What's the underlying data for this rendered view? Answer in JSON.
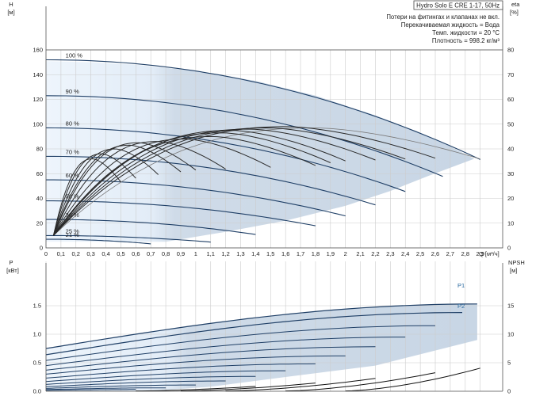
{
  "info": {
    "title": "Hydro Solo E CRE 1-17, 50Hz",
    "lines": [
      "Потери на фитингах и клапанах не вкл.",
      "Перекачиваемая жидкость = Вода",
      "Темп. жидкости = 20 °C",
      "Плотность = 998.2 кг/м³"
    ]
  },
  "colors": {
    "curve": "#1f3f66",
    "eta": "#2a2a2a",
    "eta_light": "#7a7a7a",
    "region": "#cfdbe8",
    "region_light": "#eaf2fb",
    "grid": "#cccccc",
    "label_blue": "#2b6aa0"
  },
  "chart_data": [
    {
      "type": "line",
      "title": "",
      "xlabel": "Q [м³/ч]",
      "ylabel": "H [м]",
      "y2label": "eta [%]",
      "x_ticks": [
        0,
        0.1,
        0.2,
        0.3,
        0.4,
        0.5,
        0.6,
        0.7,
        0.8,
        0.9,
        1.0,
        1.1,
        1.2,
        1.3,
        1.4,
        1.5,
        1.6,
        1.7,
        1.8,
        1.9,
        2.0,
        2.1,
        2.2,
        2.3,
        2.4,
        2.5,
        2.6,
        2.7,
        2.8,
        2.9
      ],
      "xlim": [
        0,
        3.05
      ],
      "ylim": [
        0,
        160
      ],
      "y_ticks": [
        0,
        20,
        40,
        60,
        80,
        100,
        120,
        140,
        160
      ],
      "y2lim": [
        0,
        80
      ],
      "y2_ticks": [
        0,
        10,
        20,
        30,
        40,
        50,
        60,
        70,
        80
      ],
      "grid": true,
      "operating_region": {
        "upper": [
          [
            0,
            151
          ],
          [
            0.3,
            150
          ],
          [
            0.6,
            148
          ],
          [
            1.0,
            143
          ],
          [
            1.4,
            135
          ],
          [
            1.8,
            123
          ],
          [
            2.2,
            107
          ],
          [
            2.5,
            93
          ],
          [
            2.7,
            82
          ],
          [
            2.86,
            72
          ]
        ],
        "lower": [
          [
            0.8,
            5
          ],
          [
            1.2,
            13
          ],
          [
            1.6,
            22
          ],
          [
            2.0,
            34
          ],
          [
            2.3,
            46
          ],
          [
            2.55,
            58
          ],
          [
            2.86,
            72
          ]
        ]
      },
      "speed_curves": [
        {
          "label": "100 %",
          "H0": 152,
          "Qmax": 2.9
        },
        {
          "label": "90 %",
          "H0": 123,
          "Qmax": 2.65
        },
        {
          "label": "80 %",
          "H0": 97,
          "Qmax": 2.4
        },
        {
          "label": "70 %",
          "H0": 74,
          "Qmax": 2.2
        },
        {
          "label": "60 %",
          "H0": 55,
          "Qmax": 2.0
        },
        {
          "label": "50 %",
          "H0": 38,
          "Qmax": 1.8
        },
        {
          "label": "38 %",
          "H0": 23,
          "Qmax": 1.4
        },
        {
          "label": "25 %",
          "H0": 10,
          "Qmax": 1.1
        },
        {
          "label": "21 %",
          "H0": 7,
          "Qmax": 0.7
        }
      ],
      "efficiency_curves": [
        {
          "eta_max": 48.5,
          "Q_end": 2.9,
          "light": true
        },
        {
          "eta_max": 49,
          "Q_end": 2.6
        },
        {
          "eta_max": 48.5,
          "Q_end": 2.4
        },
        {
          "eta_max": 48,
          "Q_end": 2.2
        },
        {
          "eta_max": 47.5,
          "Q_end": 2.0
        },
        {
          "eta_max": 46.5,
          "Q_end": 1.9
        },
        {
          "eta_max": 45,
          "Q_end": 1.8
        },
        {
          "eta_max": 44,
          "Q_end": 1.5
        },
        {
          "eta_max": 43,
          "Q_end": 1.2
        },
        {
          "eta_max": 42.5,
          "Q_end": 1.0
        },
        {
          "eta_max": 41.5,
          "Q_end": 0.9
        },
        {
          "eta_max": 40,
          "Q_end": 0.75
        },
        {
          "eta_max": 38,
          "Q_end": 0.6
        },
        {
          "eta_max": 36,
          "Q_end": 0.5
        }
      ]
    },
    {
      "type": "line",
      "title": "",
      "xlabel": "Q [м³/ч]",
      "ylabel": "P [кВт]",
      "y2label": "NPSH [м]",
      "xlim": [
        0,
        3.05
      ],
      "ylim": [
        0,
        2.0
      ],
      "y_ticks": [
        0.0,
        0.5,
        1.0,
        1.5
      ],
      "y2lim": [
        0,
        20
      ],
      "y2_ticks": [
        0,
        5,
        10,
        15
      ],
      "grid": true,
      "series_labels": [
        "P1",
        "P2"
      ],
      "power_curves": [
        {
          "P0": 0.75,
          "Pend": 1.53,
          "Q_end": 2.88
        },
        {
          "P0": 0.64,
          "Pend": 1.38,
          "Q_end": 2.78
        },
        {
          "P0": 0.54,
          "Pend": 1.15,
          "Q_end": 2.6
        },
        {
          "P0": 0.45,
          "Pend": 0.95,
          "Q_end": 2.4
        },
        {
          "P0": 0.37,
          "Pend": 0.78,
          "Q_end": 2.2
        },
        {
          "P0": 0.3,
          "Pend": 0.62,
          "Q_end": 2.0
        },
        {
          "P0": 0.23,
          "Pend": 0.48,
          "Q_end": 1.8
        },
        {
          "P0": 0.17,
          "Pend": 0.36,
          "Q_end": 1.6
        },
        {
          "P0": 0.12,
          "Pend": 0.26,
          "Q_end": 1.4
        },
        {
          "P0": 0.08,
          "Pend": 0.18,
          "Q_end": 1.2
        },
        {
          "P0": 0.05,
          "Pend": 0.11,
          "Q_end": 1.0
        },
        {
          "P0": 0.03,
          "Pend": 0.06,
          "Q_end": 0.8
        },
        {
          "P0": 0.015,
          "Pend": 0.03,
          "Q_end": 0.6
        }
      ],
      "npsh_curves": [
        {
          "Q_start": 2.0,
          "Q_end": 2.9,
          "N_end": 4.0
        },
        {
          "Q_start": 1.6,
          "Q_end": 2.6,
          "N_end": 3.2
        },
        {
          "Q_start": 1.2,
          "Q_end": 2.2,
          "N_end": 2.2
        },
        {
          "Q_start": 0.9,
          "Q_end": 1.8,
          "N_end": 1.4
        },
        {
          "Q_start": 0.6,
          "Q_end": 1.4,
          "N_end": 0.8
        }
      ]
    }
  ]
}
